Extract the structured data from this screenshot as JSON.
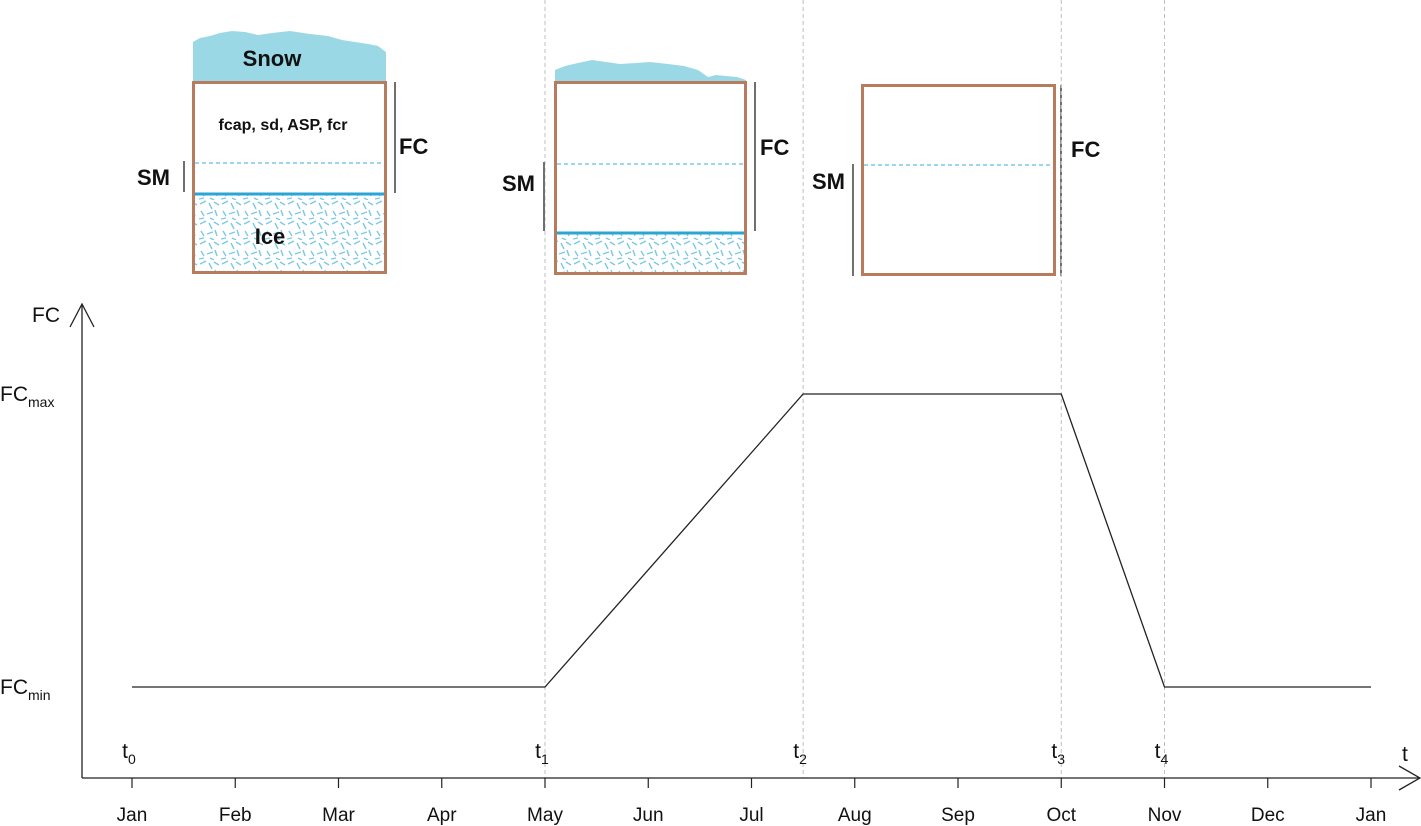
{
  "colors": {
    "soil_border": "#b77b5e",
    "snow_fill": "#9bd8e6",
    "ice_line": "#2aa6d4",
    "ice_hatch": "#7cc9e6",
    "dashed_line": "#3aaee0",
    "grid": "#bfbfbf",
    "line": "#222222"
  },
  "diagrams": [
    {
      "snow": "present-thick",
      "snow_label": "Snow",
      "param_text": "fcap, sd, ASP, fcr",
      "ice_label": "Ice",
      "ice": "thick",
      "sm_label": "SM",
      "fc_label": "FC"
    },
    {
      "snow": "present-thin",
      "ice": "thin",
      "sm_label": "SM",
      "fc_label": "FC"
    },
    {
      "snow": "none",
      "ice": "none",
      "sm_label": "SM",
      "fc_label": "FC"
    }
  ],
  "chart_data": {
    "type": "line",
    "x_axis_label": "t",
    "y_axis_label": "FC",
    "y_levels": [
      {
        "base": "FC",
        "sub": "max"
      },
      {
        "base": "FC",
        "sub": "min"
      }
    ],
    "months": [
      "Jan",
      "Feb",
      "Mar",
      "Apr",
      "May",
      "Jun",
      "Jul",
      "Aug",
      "Sep",
      "Oct",
      "Nov",
      "Dec",
      "Jan"
    ],
    "time_markers": [
      {
        "base": "t",
        "sub": "0",
        "month_pos": 0.0
      },
      {
        "base": "t",
        "sub": "1",
        "month_pos": 4.0
      },
      {
        "base": "t",
        "sub": "2",
        "month_pos": 6.5
      },
      {
        "base": "t",
        "sub": "3",
        "month_pos": 9.0
      },
      {
        "base": "t",
        "sub": "4",
        "month_pos": 10.0
      }
    ],
    "series": [
      {
        "points": [
          {
            "month_pos": 0.0,
            "level": "min"
          },
          {
            "month_pos": 4.0,
            "level": "min"
          },
          {
            "month_pos": 6.5,
            "level": "max"
          },
          {
            "month_pos": 9.0,
            "level": "max"
          },
          {
            "month_pos": 10.0,
            "level": "min"
          },
          {
            "month_pos": 12.0,
            "level": "min"
          }
        ]
      }
    ]
  }
}
